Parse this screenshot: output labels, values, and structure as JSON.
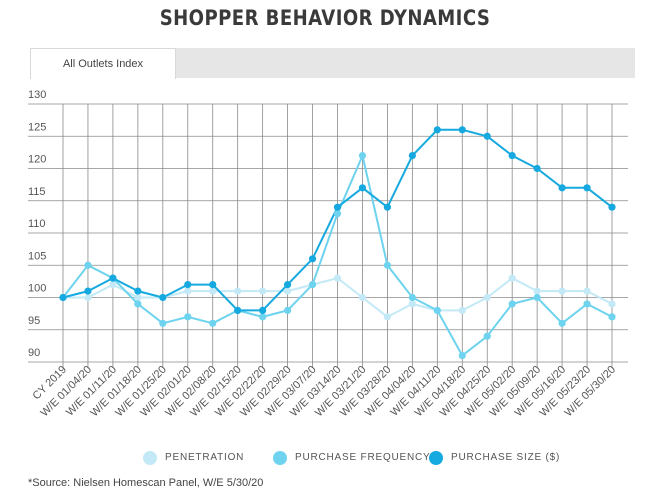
{
  "title": "SHOPPER BEHAVIOR DYNAMICS",
  "tab": {
    "label": "All Outlets Index"
  },
  "source": "*Source: Nielsen Homescan Panel, W/E 5/30/20",
  "chart_data": {
    "type": "line",
    "categories": [
      "CY 2019",
      "W/E 01/04/20",
      "W/E 01/11/20",
      "W/E 01/18/20",
      "W/E 01/25/20",
      "W/E 02/01/20",
      "W/E 02/08/20",
      "W/E 02/15/20",
      "W/E 02/22/20",
      "W/E 02/29/20",
      "W/E 03/07/20",
      "W/E 03/14/20",
      "W/E 03/21/20",
      "W/E 03/28/20",
      "W/E 04/04/20",
      "W/E 04/11/20",
      "W/E 04/18/20",
      "W/E 04/25/20",
      "W/E 05/02/20",
      "W/E 05/09/20",
      "W/E 05/16/20",
      "W/E 05/23/20",
      "W/E 05/30/20"
    ],
    "ylim": [
      90,
      130
    ],
    "yticks": [
      90,
      95,
      100,
      105,
      110,
      115,
      120,
      125,
      130
    ],
    "grid": true,
    "legend_position": "bottom",
    "series": [
      {
        "name": "PENETRATION",
        "color": "#c3e9f6",
        "values": [
          100,
          100,
          102,
          100,
          100,
          101,
          101,
          101,
          101,
          101,
          102,
          103,
          100,
          97,
          99,
          98,
          98,
          100,
          103,
          101,
          101,
          101,
          99
        ]
      },
      {
        "name": "PURCHASE FREQUENCY",
        "color": "#6dd3ee",
        "values": [
          100,
          105,
          103,
          99,
          96,
          97,
          96,
          98,
          97,
          98,
          102,
          113,
          122,
          105,
          100,
          98,
          91,
          94,
          99,
          100,
          96,
          99,
          97
        ]
      },
      {
        "name": "PURCHASE SIZE ($)",
        "color": "#15a9df",
        "values": [
          100,
          101,
          103,
          101,
          100,
          102,
          102,
          98,
          98,
          102,
          106,
          114,
          117,
          114,
          122,
          126,
          126,
          125,
          122,
          120,
          117,
          117,
          114
        ]
      }
    ]
  }
}
